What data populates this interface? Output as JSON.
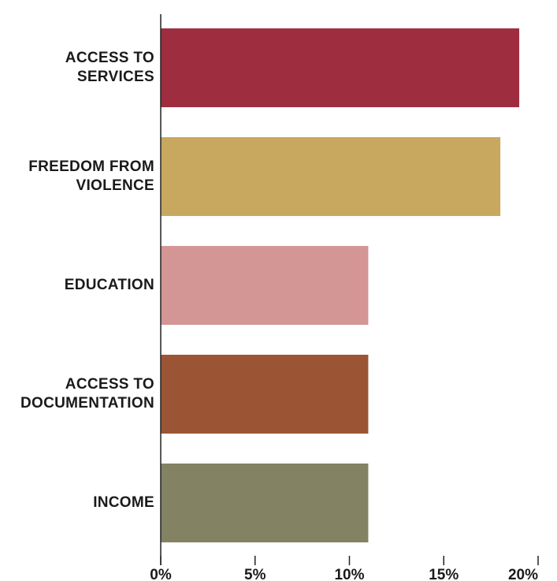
{
  "chart_data": {
    "type": "bar",
    "orientation": "horizontal",
    "categories": [
      [
        "ACCESS TO",
        "SERVICES"
      ],
      [
        "FREEDOM FROM",
        "VIOLENCE"
      ],
      [
        "EDUCATION"
      ],
      [
        "ACCESS TO",
        "DOCUMENTATION"
      ],
      [
        "INCOME"
      ]
    ],
    "values": [
      19,
      18,
      11,
      11,
      11
    ],
    "colors": [
      "#9e2d40",
      "#c8a85e",
      "#d49595",
      "#9c5534",
      "#838262"
    ],
    "xlim": [
      0,
      20
    ],
    "xticks": [
      0,
      5,
      10,
      15,
      20
    ],
    "xtick_labels": [
      "0%",
      "5%",
      "10%",
      "15%",
      "20%"
    ],
    "grid": false,
    "legend": "none",
    "title": "",
    "xlabel": "",
    "ylabel": ""
  }
}
